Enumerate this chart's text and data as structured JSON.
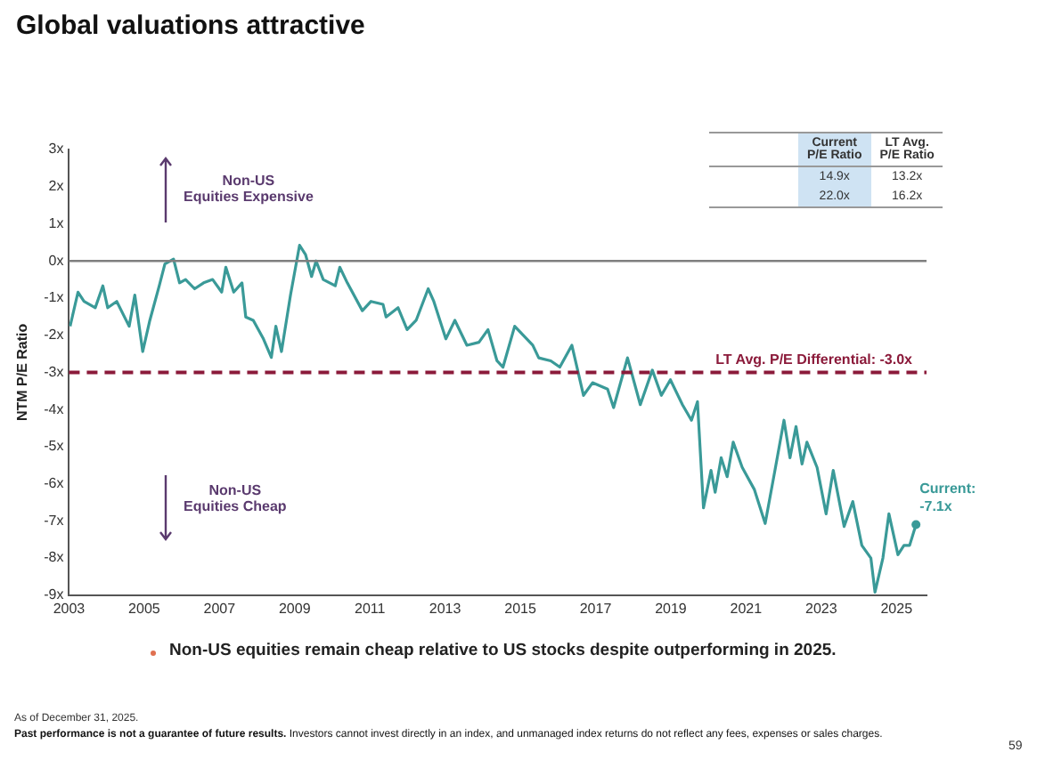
{
  "chart_data": {
    "type": "line",
    "title": "Global valuations attractive",
    "ylabel": "NTM P/E Ratio",
    "x": [
      2003.03,
      2003.24,
      2003.4,
      2003.7,
      2003.9,
      2004.03,
      2004.27,
      2004.6,
      2004.75,
      2004.96,
      2005.15,
      2005.4,
      2005.55,
      2005.78,
      2005.94,
      2006.1,
      2006.34,
      2006.58,
      2006.82,
      2007.06,
      2007.17,
      2007.38,
      2007.6,
      2007.7,
      2007.9,
      2008.17,
      2008.38,
      2008.5,
      2008.65,
      2008.89,
      2009.13,
      2009.29,
      2009.45,
      2009.57,
      2009.76,
      2010.08,
      2010.2,
      2010.4,
      2010.8,
      2011.03,
      2011.35,
      2011.43,
      2011.75,
      2011.99,
      2012.23,
      2012.55,
      2012.7,
      2013.02,
      2013.26,
      2013.58,
      2013.9,
      2014.14,
      2014.38,
      2014.54,
      2014.85,
      2015.33,
      2015.49,
      2015.81,
      2016.05,
      2016.37,
      2016.68,
      2016.92,
      2017.32,
      2017.48,
      2017.85,
      2018.19,
      2018.51,
      2018.75,
      2018.99,
      2019.31,
      2019.55,
      2019.71,
      2019.87,
      2020.07,
      2020.18,
      2020.34,
      2020.5,
      2020.66,
      2020.9,
      2021.22,
      2021.51,
      2021.77,
      2022.01,
      2022.17,
      2022.33,
      2022.49,
      2022.62,
      2022.89,
      2023.13,
      2023.32,
      2023.61,
      2023.84,
      2024.08,
      2024.32,
      2024.43,
      2024.64,
      2024.8,
      2025.04,
      2025.2,
      2025.35,
      2025.52
    ],
    "series": [
      {
        "color": "#3a9a98",
        "values": [
          -1.76,
          -0.84,
          -1.09,
          -1.26,
          -0.67,
          -1.26,
          -1.09,
          -1.76,
          -0.92,
          -2.44,
          -1.6,
          -0.67,
          -0.08,
          0.05,
          -0.59,
          -0.5,
          -0.75,
          -0.59,
          -0.5,
          -0.84,
          -0.17,
          -0.84,
          -0.59,
          -1.51,
          -1.6,
          -2.1,
          -2.6,
          -1.76,
          -2.44,
          -0.92,
          0.42,
          0.17,
          -0.42,
          0,
          -0.5,
          -0.67,
          -0.17,
          -0.59,
          -1.34,
          -1.09,
          -1.17,
          -1.51,
          -1.26,
          -1.85,
          -1.6,
          -0.75,
          -1.09,
          -2.1,
          -1.6,
          -2.27,
          -2.19,
          -1.85,
          -2.69,
          -2.86,
          -1.76,
          -2.27,
          -2.61,
          -2.69,
          -2.86,
          -2.27,
          -3.62,
          -3.28,
          -3.45,
          -3.95,
          -2.61,
          -3.87,
          -2.94,
          -3.62,
          -3.2,
          -3.87,
          -4.29,
          -3.79,
          -6.65,
          -5.64,
          -6.23,
          -5.3,
          -5.81,
          -4.88,
          -5.56,
          -6.15,
          -7.07,
          -5.64,
          -4.29,
          -5.3,
          -4.46,
          -5.47,
          -4.88,
          -5.56,
          -6.81,
          -5.64,
          -7.15,
          -6.48,
          -7.66,
          -8.0,
          -8.92,
          -8.0,
          -6.81,
          -7.91,
          -7.66,
          -7.66,
          -7.1
        ]
      }
    ],
    "xlim": [
      2003,
      2025.8
    ],
    "xticks": [
      2003,
      2005,
      2007,
      2009,
      2011,
      2013,
      2015,
      2017,
      2019,
      2021,
      2023,
      2025
    ],
    "ylim": [
      -9,
      3
    ],
    "yticks": [
      {
        "value": 3,
        "label": "3x"
      },
      {
        "value": 2,
        "label": "2x"
      },
      {
        "value": 1,
        "label": "1x"
      },
      {
        "value": 0,
        "label": "0x"
      },
      {
        "value": -1,
        "label": "-1x"
      },
      {
        "value": -2,
        "label": "-2x"
      },
      {
        "value": -3,
        "label": "-3x"
      },
      {
        "value": -4,
        "label": "-4x"
      },
      {
        "value": -5,
        "label": "-5x"
      },
      {
        "value": -6,
        "label": "-6x"
      },
      {
        "value": -7,
        "label": "-7x"
      },
      {
        "value": -8,
        "label": "-8x"
      },
      {
        "value": -9,
        "label": "-9x"
      }
    ],
    "grid": false,
    "legend": false,
    "marker": "none",
    "line_style": "solid",
    "ref_lines": [
      {
        "axis": "y",
        "value": 0,
        "label": null,
        "color": "#7f7f7f",
        "line_style": "solid"
      },
      {
        "axis": "y",
        "value": -3.0,
        "label": "LT Avg. P/E Differential: -3.0x",
        "color": "#8b1a3a",
        "line_style": "dashed"
      }
    ],
    "annotations": [
      "Non-US\nEquities Expensive",
      "Non-US\nEquities Cheap",
      {
        "text": "Current:\n-7.1x",
        "x": 2025.52,
        "y": -7.1
      },
      "Non-US equities remain cheap relative to US stocks despite outperforming in 2025.",
      "As of December 31, 2025.",
      "Past performance is not a guarantee of future results.",
      "Investors cannot invest directly in an index, and unmanaged index returns do not reflect any fees, expenses or sales charges.",
      "59",
      "Current\nP/E Ratio",
      "LT Avg.\nP/E Ratio",
      "14.9x",
      "13.2x",
      "22.0x",
      "16.2x"
    ]
  }
}
